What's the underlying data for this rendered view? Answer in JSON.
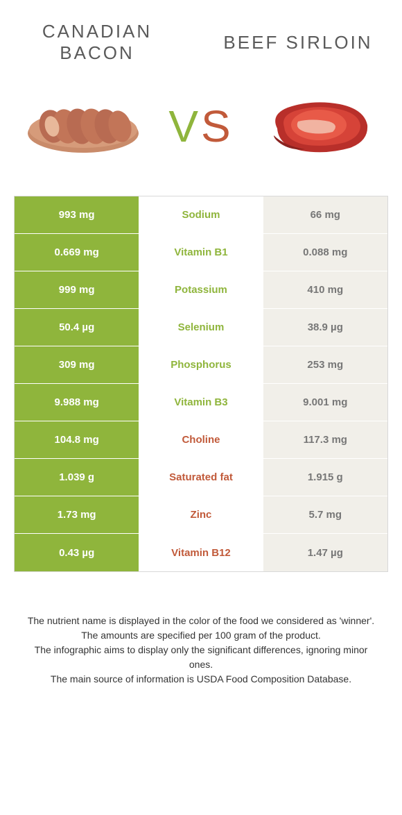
{
  "header": {
    "left_title": "CANADIAN BACON",
    "right_title": "BEEF SIRLOIN",
    "vs_v": "V",
    "vs_s": "S"
  },
  "colors": {
    "left_winner": "#8fb53c",
    "right_winner": "#c15a3a",
    "left_cell_bg": "#8fb53c",
    "right_cell_bg_winner": "#c15a3a",
    "right_cell_bg_plain": "#f1efe9",
    "left_cell_bg_plain": "#f1efe9",
    "mid_text_left": "#8fb53c",
    "mid_text_right": "#c15a3a",
    "plain_text": "#777777"
  },
  "rows": [
    {
      "left": "993 mg",
      "name": "Sodium",
      "right": "66 mg",
      "winner": "left"
    },
    {
      "left": "0.669 mg",
      "name": "Vitamin B1",
      "right": "0.088 mg",
      "winner": "left"
    },
    {
      "left": "999 mg",
      "name": "Potassium",
      "right": "410 mg",
      "winner": "left"
    },
    {
      "left": "50.4 µg",
      "name": "Selenium",
      "right": "38.9 µg",
      "winner": "left"
    },
    {
      "left": "309 mg",
      "name": "Phosphorus",
      "right": "253 mg",
      "winner": "left"
    },
    {
      "left": "9.988 mg",
      "name": "Vitamin B3",
      "right": "9.001 mg",
      "winner": "left"
    },
    {
      "left": "104.8 mg",
      "name": "Choline",
      "right": "117.3 mg",
      "winner": "right"
    },
    {
      "left": "1.039 g",
      "name": "Saturated fat",
      "right": "1.915 g",
      "winner": "right"
    },
    {
      "left": "1.73 mg",
      "name": "Zinc",
      "right": "5.7 mg",
      "winner": "right"
    },
    {
      "left": "0.43 µg",
      "name": "Vitamin B12",
      "right": "1.47 µg",
      "winner": "right"
    }
  ],
  "footer": {
    "line1": "The nutrient name is displayed in the color of the food we considered as 'winner'.",
    "line2": "The amounts are specified per 100 gram of the product.",
    "line3": "The infographic aims to display only the significant differences, ignoring minor ones.",
    "line4": "The main source of information is USDA Food Composition Database."
  }
}
